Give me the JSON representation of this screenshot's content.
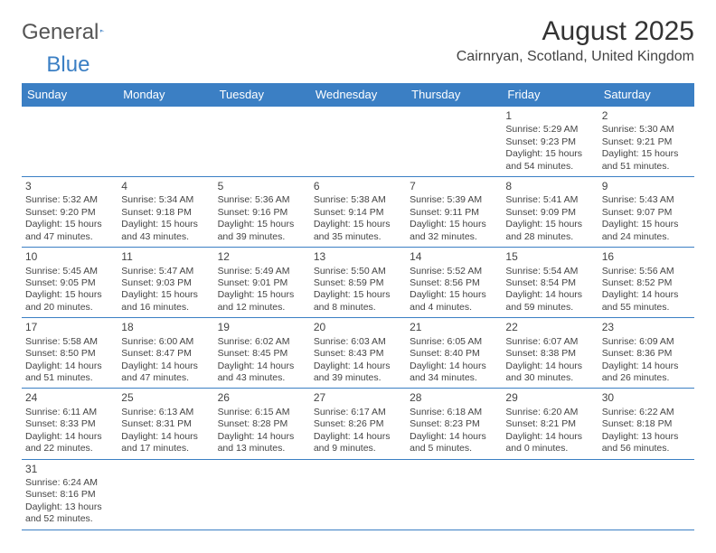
{
  "logo": {
    "text_a": "General",
    "text_b": "Blue"
  },
  "title": "August 2025",
  "location": "Cairnryan, Scotland, United Kingdom",
  "colors": {
    "header_bg": "#3b7fc4",
    "header_fg": "#ffffff",
    "border": "#3b7fc4",
    "text": "#444444",
    "logo_gray": "#555555",
    "logo_blue": "#3b7fc4",
    "background": "#ffffff"
  },
  "day_headers": [
    "Sunday",
    "Monday",
    "Tuesday",
    "Wednesday",
    "Thursday",
    "Friday",
    "Saturday"
  ],
  "weeks": [
    [
      null,
      null,
      null,
      null,
      null,
      {
        "n": "1",
        "sr": "5:29 AM",
        "ss": "9:23 PM",
        "dl": "15 hours and 54 minutes."
      },
      {
        "n": "2",
        "sr": "5:30 AM",
        "ss": "9:21 PM",
        "dl": "15 hours and 51 minutes."
      }
    ],
    [
      {
        "n": "3",
        "sr": "5:32 AM",
        "ss": "9:20 PM",
        "dl": "15 hours and 47 minutes."
      },
      {
        "n": "4",
        "sr": "5:34 AM",
        "ss": "9:18 PM",
        "dl": "15 hours and 43 minutes."
      },
      {
        "n": "5",
        "sr": "5:36 AM",
        "ss": "9:16 PM",
        "dl": "15 hours and 39 minutes."
      },
      {
        "n": "6",
        "sr": "5:38 AM",
        "ss": "9:14 PM",
        "dl": "15 hours and 35 minutes."
      },
      {
        "n": "7",
        "sr": "5:39 AM",
        "ss": "9:11 PM",
        "dl": "15 hours and 32 minutes."
      },
      {
        "n": "8",
        "sr": "5:41 AM",
        "ss": "9:09 PM",
        "dl": "15 hours and 28 minutes."
      },
      {
        "n": "9",
        "sr": "5:43 AM",
        "ss": "9:07 PM",
        "dl": "15 hours and 24 minutes."
      }
    ],
    [
      {
        "n": "10",
        "sr": "5:45 AM",
        "ss": "9:05 PM",
        "dl": "15 hours and 20 minutes."
      },
      {
        "n": "11",
        "sr": "5:47 AM",
        "ss": "9:03 PM",
        "dl": "15 hours and 16 minutes."
      },
      {
        "n": "12",
        "sr": "5:49 AM",
        "ss": "9:01 PM",
        "dl": "15 hours and 12 minutes."
      },
      {
        "n": "13",
        "sr": "5:50 AM",
        "ss": "8:59 PM",
        "dl": "15 hours and 8 minutes."
      },
      {
        "n": "14",
        "sr": "5:52 AM",
        "ss": "8:56 PM",
        "dl": "15 hours and 4 minutes."
      },
      {
        "n": "15",
        "sr": "5:54 AM",
        "ss": "8:54 PM",
        "dl": "14 hours and 59 minutes."
      },
      {
        "n": "16",
        "sr": "5:56 AM",
        "ss": "8:52 PM",
        "dl": "14 hours and 55 minutes."
      }
    ],
    [
      {
        "n": "17",
        "sr": "5:58 AM",
        "ss": "8:50 PM",
        "dl": "14 hours and 51 minutes."
      },
      {
        "n": "18",
        "sr": "6:00 AM",
        "ss": "8:47 PM",
        "dl": "14 hours and 47 minutes."
      },
      {
        "n": "19",
        "sr": "6:02 AM",
        "ss": "8:45 PM",
        "dl": "14 hours and 43 minutes."
      },
      {
        "n": "20",
        "sr": "6:03 AM",
        "ss": "8:43 PM",
        "dl": "14 hours and 39 minutes."
      },
      {
        "n": "21",
        "sr": "6:05 AM",
        "ss": "8:40 PM",
        "dl": "14 hours and 34 minutes."
      },
      {
        "n": "22",
        "sr": "6:07 AM",
        "ss": "8:38 PM",
        "dl": "14 hours and 30 minutes."
      },
      {
        "n": "23",
        "sr": "6:09 AM",
        "ss": "8:36 PM",
        "dl": "14 hours and 26 minutes."
      }
    ],
    [
      {
        "n": "24",
        "sr": "6:11 AM",
        "ss": "8:33 PM",
        "dl": "14 hours and 22 minutes."
      },
      {
        "n": "25",
        "sr": "6:13 AM",
        "ss": "8:31 PM",
        "dl": "14 hours and 17 minutes."
      },
      {
        "n": "26",
        "sr": "6:15 AM",
        "ss": "8:28 PM",
        "dl": "14 hours and 13 minutes."
      },
      {
        "n": "27",
        "sr": "6:17 AM",
        "ss": "8:26 PM",
        "dl": "14 hours and 9 minutes."
      },
      {
        "n": "28",
        "sr": "6:18 AM",
        "ss": "8:23 PM",
        "dl": "14 hours and 5 minutes."
      },
      {
        "n": "29",
        "sr": "6:20 AM",
        "ss": "8:21 PM",
        "dl": "14 hours and 0 minutes."
      },
      {
        "n": "30",
        "sr": "6:22 AM",
        "ss": "8:18 PM",
        "dl": "13 hours and 56 minutes."
      }
    ],
    [
      {
        "n": "31",
        "sr": "6:24 AM",
        "ss": "8:16 PM",
        "dl": "13 hours and 52 minutes."
      },
      null,
      null,
      null,
      null,
      null,
      null
    ]
  ],
  "labels": {
    "sunrise": "Sunrise:",
    "sunset": "Sunset:",
    "daylight": "Daylight:"
  }
}
